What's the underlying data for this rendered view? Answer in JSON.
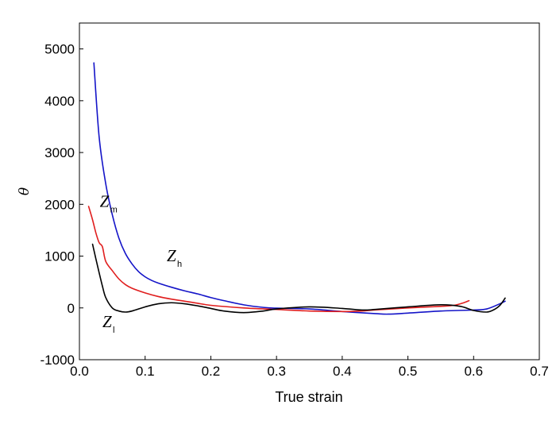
{
  "chart_data": {
    "type": "line",
    "title": "",
    "xlabel": "True strain",
    "ylabel": "θ",
    "xlim": [
      0.0,
      0.7
    ],
    "ylim": [
      -1000,
      5500
    ],
    "xticks": [
      0.0,
      0.1,
      0.2,
      0.3,
      0.4,
      0.5,
      0.6,
      0.7
    ],
    "xtick_labels": [
      "0.0",
      "0.1",
      "0.2",
      "0.3",
      "0.4",
      "0.5",
      "0.6",
      "0.7"
    ],
    "yticks": [
      -1000,
      0,
      1000,
      2000,
      3000,
      4000,
      5000
    ],
    "ytick_labels": [
      "-1000",
      "0",
      "1000",
      "2000",
      "3000",
      "4000",
      "5000"
    ],
    "grid": false,
    "legend": "none",
    "series": [
      {
        "name": "Z_h",
        "color": "#1414c8",
        "x": [
          0.022,
          0.03,
          0.04,
          0.05,
          0.06,
          0.07,
          0.08,
          0.09,
          0.1,
          0.11,
          0.12,
          0.14,
          0.16,
          0.18,
          0.2,
          0.22,
          0.25,
          0.28,
          0.3,
          0.35,
          0.4,
          0.45,
          0.47,
          0.5,
          0.55,
          0.6,
          0.62,
          0.64,
          0.648
        ],
        "y": [
          4730,
          3300,
          2400,
          1800,
          1350,
          1050,
          850,
          700,
          600,
          530,
          480,
          400,
          330,
          270,
          200,
          140,
          60,
          10,
          -5,
          -20,
          -70,
          -110,
          -120,
          -100,
          -60,
          -40,
          -20,
          80,
          130
        ]
      },
      {
        "name": "Z_m",
        "color": "#e01e1e",
        "x": [
          0.014,
          0.02,
          0.025,
          0.03,
          0.035,
          0.04,
          0.05,
          0.06,
          0.07,
          0.08,
          0.1,
          0.12,
          0.14,
          0.16,
          0.18,
          0.2,
          0.25,
          0.3,
          0.35,
          0.4,
          0.43,
          0.45,
          0.5,
          0.55,
          0.57,
          0.585,
          0.593
        ],
        "y": [
          1960,
          1700,
          1450,
          1260,
          1180,
          900,
          720,
          560,
          450,
          380,
          290,
          220,
          170,
          130,
          90,
          50,
          0,
          -30,
          -60,
          -70,
          -60,
          -40,
          0,
          30,
          50,
          100,
          140
        ]
      },
      {
        "name": "Z_l",
        "color": "#000000",
        "x": [
          0.02,
          0.025,
          0.03,
          0.035,
          0.04,
          0.05,
          0.06,
          0.07,
          0.08,
          0.1,
          0.12,
          0.14,
          0.16,
          0.18,
          0.2,
          0.22,
          0.25,
          0.28,
          0.3,
          0.35,
          0.4,
          0.43,
          0.45,
          0.5,
          0.55,
          0.58,
          0.6,
          0.62,
          0.63,
          0.64,
          0.648
        ],
        "y": [
          1230,
          950,
          680,
          420,
          200,
          0,
          -60,
          -80,
          -60,
          20,
          80,
          100,
          80,
          40,
          -10,
          -60,
          -90,
          -60,
          -20,
          20,
          -10,
          -40,
          -30,
          20,
          60,
          30,
          -50,
          -80,
          -40,
          50,
          190
        ]
      }
    ],
    "annotations": [
      {
        "main": "Z",
        "sub": "m",
        "series": "Z_m",
        "at": [
          0.031,
          1950
        ]
      },
      {
        "main": "Z",
        "sub": "h",
        "series": "Z_h",
        "at": [
          0.133,
          900
        ]
      },
      {
        "main": "Z",
        "sub": "l",
        "series": "Z_l",
        "at": [
          0.035,
          -370
        ]
      }
    ]
  }
}
